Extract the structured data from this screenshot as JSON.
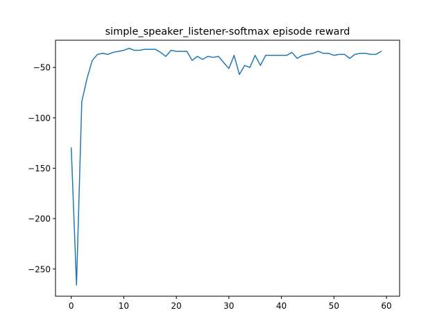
{
  "chart_data": {
    "type": "line",
    "title": "simple_speaker_listener-softmax episode reward",
    "xlabel": "",
    "ylabel": "",
    "xlim": [
      -3,
      62.5
    ],
    "ylim": [
      -277,
      -23
    ],
    "xticks": [
      0,
      10,
      20,
      30,
      40,
      50,
      60
    ],
    "yticks": [
      -250,
      -200,
      -150,
      -100,
      -50
    ],
    "xtick_labels": [
      "0",
      "10",
      "20",
      "30",
      "40",
      "50",
      "60"
    ],
    "ytick_labels": [
      "−250",
      "−200",
      "−150",
      "−100",
      "−50"
    ],
    "grid": false,
    "legend": "none",
    "series": [
      {
        "color": "#1f77b4",
        "x": [
          0,
          1,
          2,
          3,
          4,
          5,
          6,
          7,
          8,
          9,
          10,
          11,
          12,
          13,
          14,
          15,
          16,
          17,
          18,
          19,
          20,
          21,
          22,
          23,
          24,
          25,
          26,
          27,
          28,
          29,
          30,
          31,
          32,
          33,
          34,
          35,
          36,
          37,
          38,
          39,
          40,
          41,
          42,
          43,
          44,
          45,
          46,
          47,
          48,
          49,
          50,
          51,
          52,
          53,
          54,
          55,
          56,
          57,
          58,
          59
        ],
        "values": [
          -130,
          -266,
          -84,
          -61,
          -43,
          -37,
          -36,
          -37,
          -35,
          -34,
          -33,
          -31,
          -33,
          -33,
          -32,
          -32,
          -32,
          -35,
          -39,
          -33,
          -34,
          -34,
          -34,
          -43,
          -39,
          -42,
          -39,
          -40,
          -39,
          -45,
          -51,
          -38,
          -57,
          -48,
          -50,
          -38,
          -48,
          -38,
          -38,
          -38,
          -38,
          -38,
          -35,
          -41,
          -38,
          -37,
          -36,
          -34,
          -36,
          -36,
          -38,
          -37,
          -37,
          -41,
          -37,
          -36,
          -36,
          -37,
          -37,
          -34
        ]
      }
    ]
  }
}
